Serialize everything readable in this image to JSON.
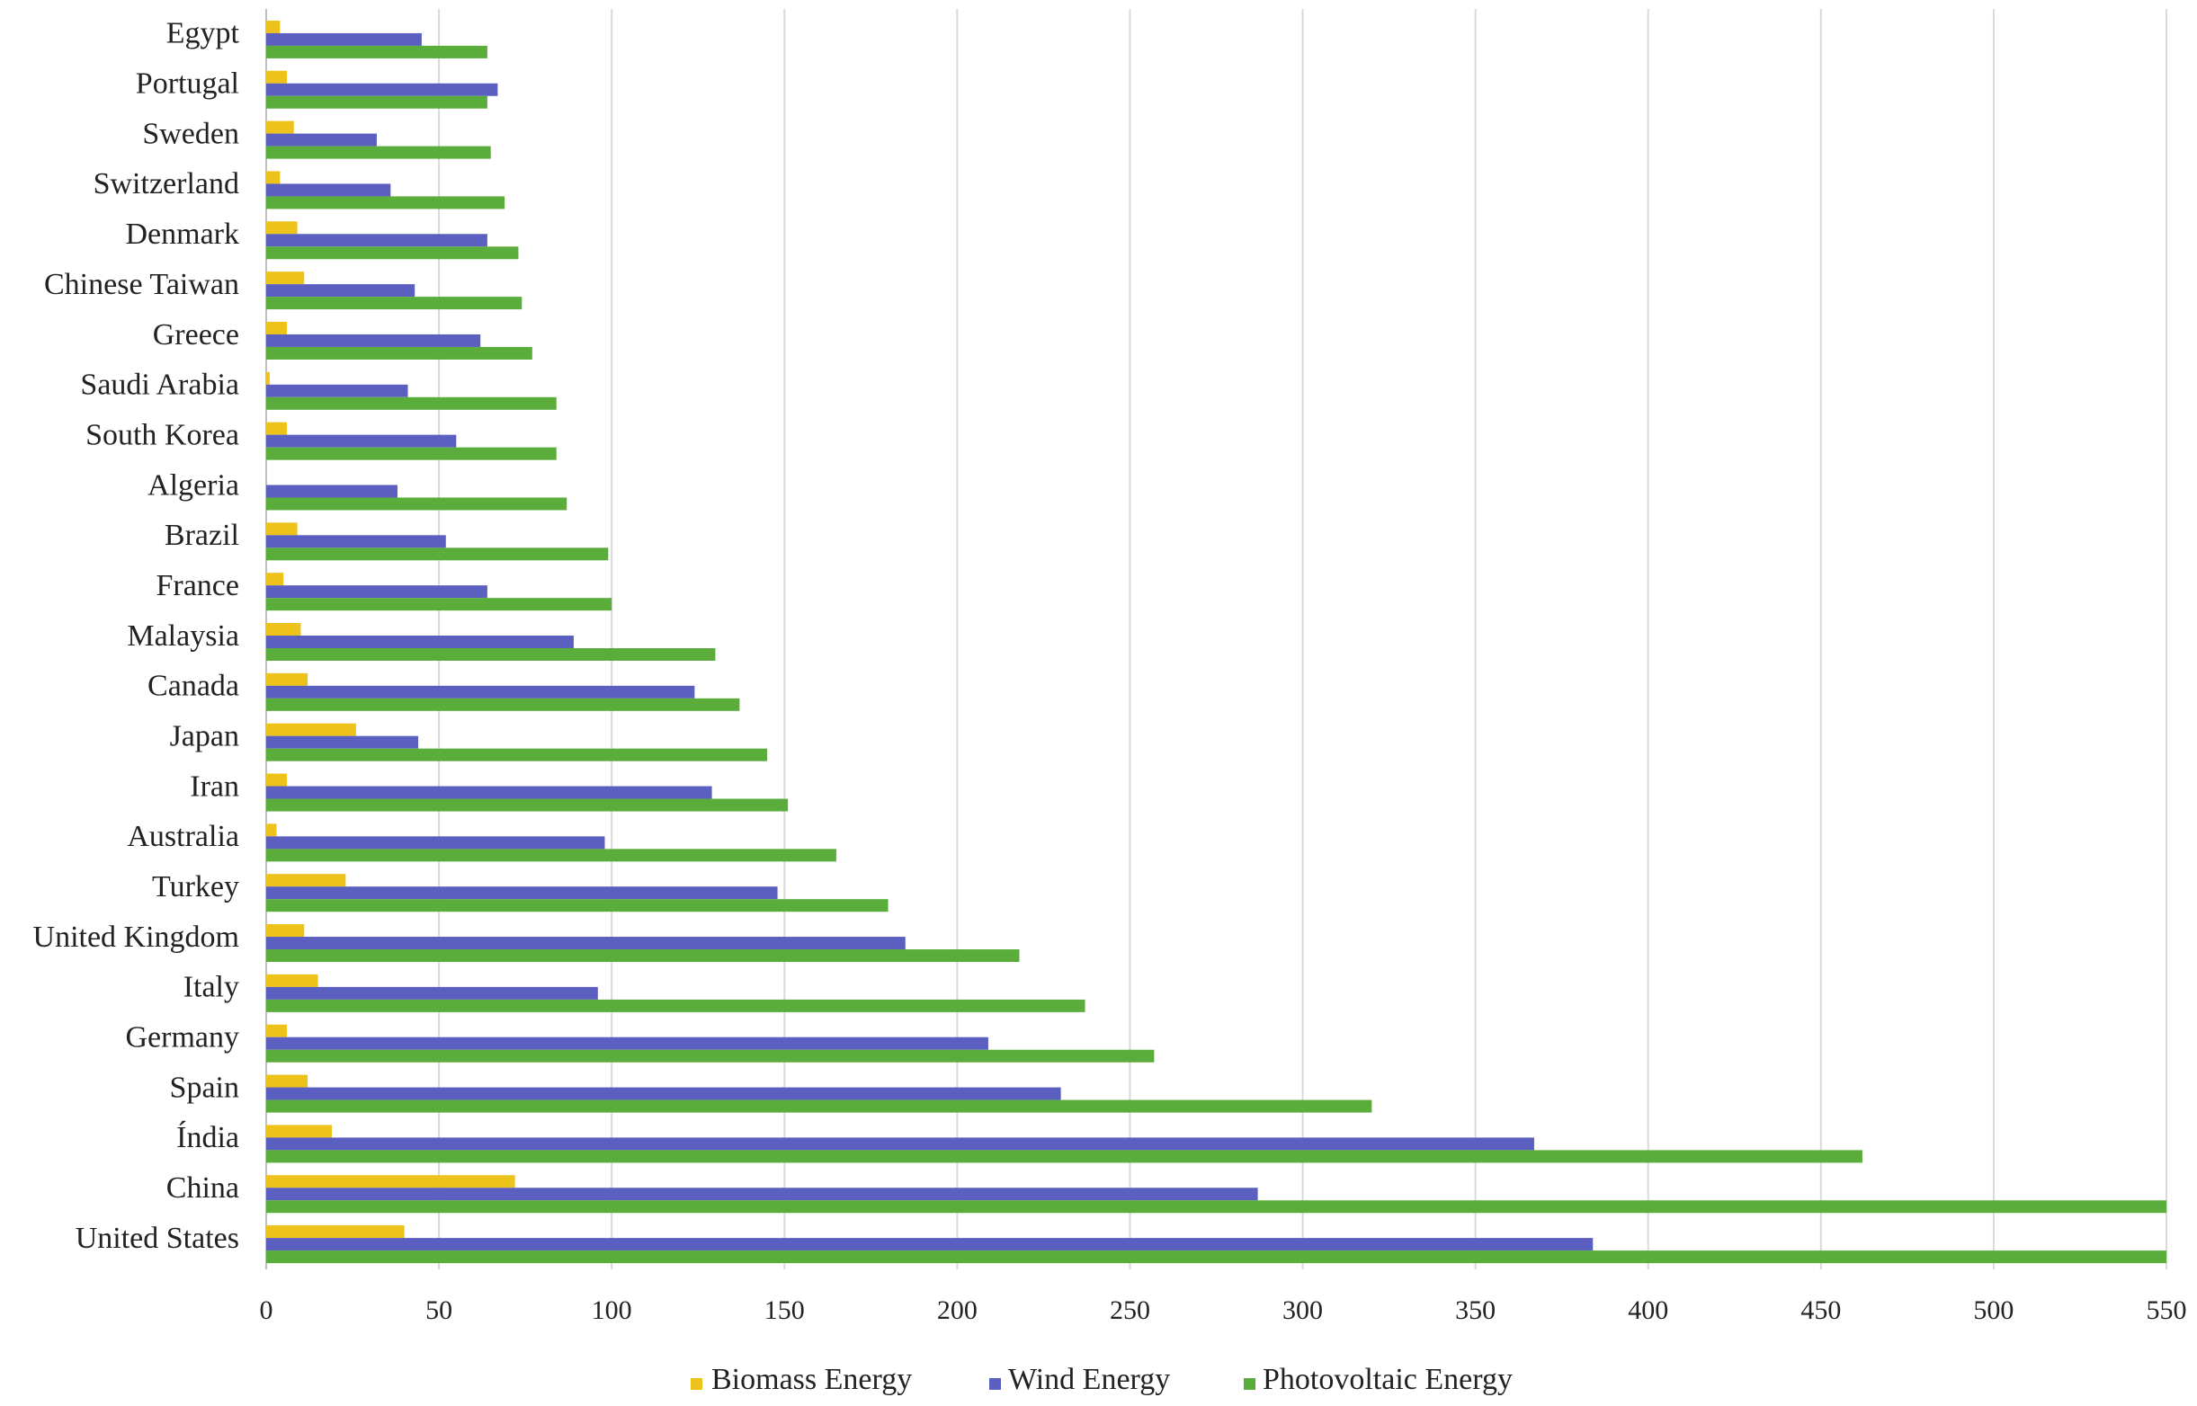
{
  "chart_data": {
    "type": "barh",
    "categories": [
      "Egypt",
      "Portugal",
      "Sweden",
      "Switzerland",
      "Denmark",
      "Chinese Taiwan",
      "Greece",
      "Saudi Arabia",
      "South Korea",
      "Algeria",
      "Brazil",
      "France",
      "Malaysia",
      "Canada",
      "Japan",
      "Iran",
      "Australia",
      "Turkey",
      "United Kingdom",
      "Italy",
      "Germany",
      "Spain",
      "Índia",
      "China",
      "United States"
    ],
    "series": [
      {
        "name": "Biomass Energy",
        "color": "#ecc21b",
        "values": [
          4,
          6,
          8,
          4,
          9,
          11,
          6,
          1,
          6,
          0,
          9,
          5,
          10,
          12,
          26,
          6,
          3,
          23,
          11,
          15,
          6,
          12,
          19,
          72,
          40
        ]
      },
      {
        "name": "Wind Energy",
        "color": "#5b5fc0",
        "values": [
          45,
          67,
          32,
          36,
          64,
          43,
          62,
          41,
          55,
          38,
          52,
          64,
          89,
          124,
          44,
          129,
          98,
          148,
          185,
          96,
          209,
          230,
          367,
          287,
          384
        ]
      },
      {
        "name": "Photovoltaic Energy",
        "color": "#5aac3b",
        "values": [
          64,
          64,
          65,
          69,
          73,
          74,
          77,
          84,
          84,
          87,
          99,
          100,
          130,
          137,
          145,
          151,
          165,
          180,
          218,
          237,
          257,
          320,
          462,
          550,
          550
        ]
      }
    ],
    "xlim": [
      0,
      550
    ],
    "xticks": [
      0,
      50,
      100,
      150,
      200,
      250,
      300,
      350,
      400,
      450,
      500,
      550
    ],
    "grid": true,
    "legend": "bottom"
  }
}
